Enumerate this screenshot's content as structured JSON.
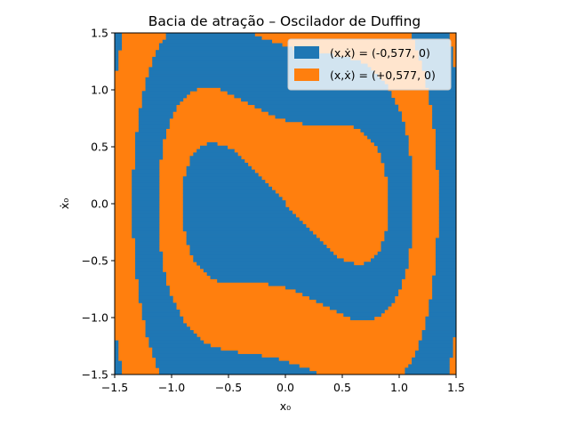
{
  "chart_data": {
    "type": "heatmap",
    "title": "Bacia de atração – Oscilador de Duffing",
    "xlabel": "x₀",
    "ylabel": "ẋ₀",
    "xlim": [
      -1.5,
      1.5
    ],
    "ylim": [
      -1.5,
      1.5
    ],
    "xticks": [
      -1.5,
      -1.0,
      -0.5,
      0.0,
      0.5,
      1.0,
      1.5
    ],
    "yticks": [
      -1.5,
      -1.0,
      -0.5,
      0.0,
      0.5,
      1.0,
      1.5
    ],
    "xtick_labels": [
      "−1.5",
      "−1.0",
      "−0.5",
      "0.0",
      "0.5",
      "1.0",
      "1.5"
    ],
    "ytick_labels": [
      "−1.5",
      "−1.0",
      "−0.5",
      "0.0",
      "0.5",
      "1.0",
      "1.5"
    ],
    "grid": false,
    "legend_position": "top-right",
    "colormap": "two-class basin map; each initial condition (x₀, ẋ₀) colored by the attractor it converges to",
    "series": [
      {
        "name": "(x,ẋ) = (-0,577, 0)",
        "equilibrium": [
          -0.577,
          0
        ],
        "color": "#1f77b4"
      },
      {
        "name": "(x,ẋ) = (+0,577, 0)",
        "equilibrium": [
          0.577,
          0
        ],
        "color": "#ff7f0e"
      }
    ],
    "basin_structure": {
      "description": "interleaved S-shaped spiral bands alternating between the two attractors, centered at the origin",
      "central_left_lobe": "blue",
      "central_right_lobe": "orange",
      "band_sequence_from_center": [
        "orange",
        "blue",
        "orange",
        "blue",
        "orange"
      ]
    }
  }
}
